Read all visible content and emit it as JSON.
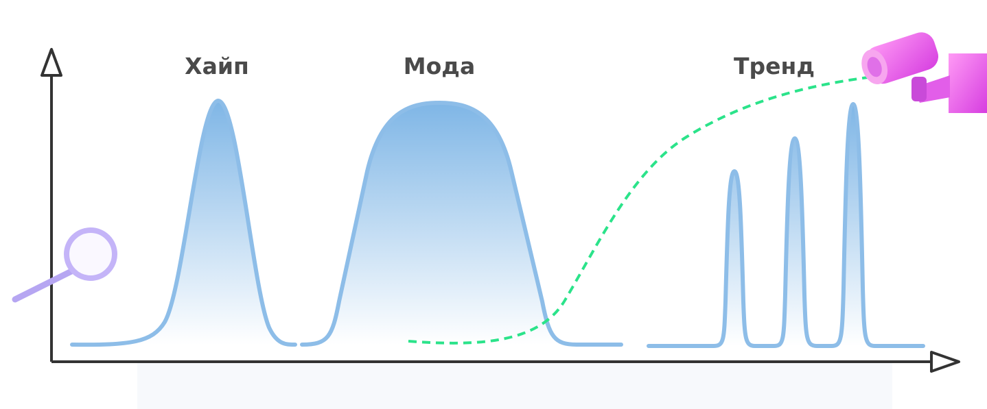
{
  "labels": [
    "Хайп",
    "Мода",
    "Тренд"
  ]
}
